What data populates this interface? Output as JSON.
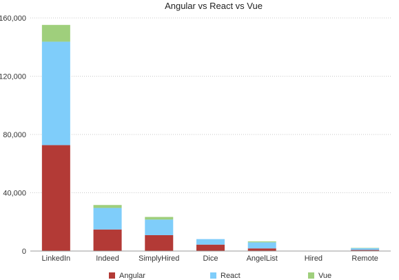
{
  "chart_data": {
    "type": "bar",
    "stacked": true,
    "title": "Angular vs React vs Vue",
    "xlabel": "",
    "ylabel": "",
    "ylim": [
      0,
      160000
    ],
    "yticks": [
      0,
      40000,
      80000,
      120000,
      160000
    ],
    "ytick_labels": [
      "0",
      "40,000",
      "80,000",
      "120,000",
      "160,000"
    ],
    "grid": true,
    "legend_position": "bottom",
    "categories": [
      "LinkedIn",
      "Indeed",
      "SimplyHired",
      "Dice",
      "AngelList",
      "Hired",
      "Remote"
    ],
    "series": [
      {
        "name": "Angular",
        "color": "#b33a36",
        "values": [
          72700,
          14800,
          10900,
          4400,
          1800,
          0,
          700
        ]
      },
      {
        "name": "React",
        "color": "#7fcdfa",
        "values": [
          71000,
          14800,
          10700,
          3800,
          4200,
          0,
          1300
        ]
      },
      {
        "name": "Vue",
        "color": "#9fcf7c",
        "values": [
          11500,
          2000,
          1800,
          0,
          600,
          0,
          200
        ]
      }
    ]
  }
}
